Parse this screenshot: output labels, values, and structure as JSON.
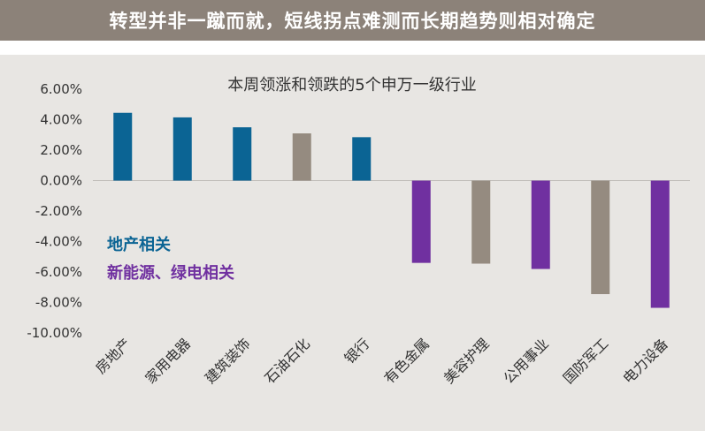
{
  "header": {
    "title": "转型并非一蹴而就，短线拐点难测而长期趋势则相对确定"
  },
  "colors": {
    "header_bg": "#8c8279",
    "panel_bg": "#e8e6e3",
    "property": "#0b6494",
    "energy": "#7030a0",
    "other": "#958b80"
  },
  "chart_data": {
    "type": "bar",
    "title": "本周领涨和领跌的5个申万一级行业",
    "xlabel": "",
    "ylabel": "",
    "ylim": [
      -10,
      6
    ],
    "yticks": [
      6,
      4,
      2,
      0,
      -2,
      -4,
      -6,
      -8,
      -10
    ],
    "ytick_labels": [
      "6.00%",
      "4.00%",
      "2.00%",
      "0.00%",
      "-2.00%",
      "-4.00%",
      "-6.00%",
      "-8.00%",
      "-10.00%"
    ],
    "categories": [
      "房地产",
      "家用电器",
      "建筑装饰",
      "石油石化",
      "银行",
      "有色金属",
      "美容护理",
      "公用事业",
      "国防军工",
      "电力设备"
    ],
    "values": [
      4.45,
      4.15,
      3.5,
      3.1,
      2.85,
      -5.4,
      -5.45,
      -5.8,
      -7.45,
      -8.35
    ],
    "groups": [
      "property",
      "property",
      "property",
      "other",
      "property",
      "energy",
      "other",
      "energy",
      "other",
      "energy"
    ],
    "annotations": [
      {
        "text": "地产相关",
        "group": "property"
      },
      {
        "text": "新能源、绿电相关",
        "group": "energy"
      }
    ],
    "grid": false
  }
}
